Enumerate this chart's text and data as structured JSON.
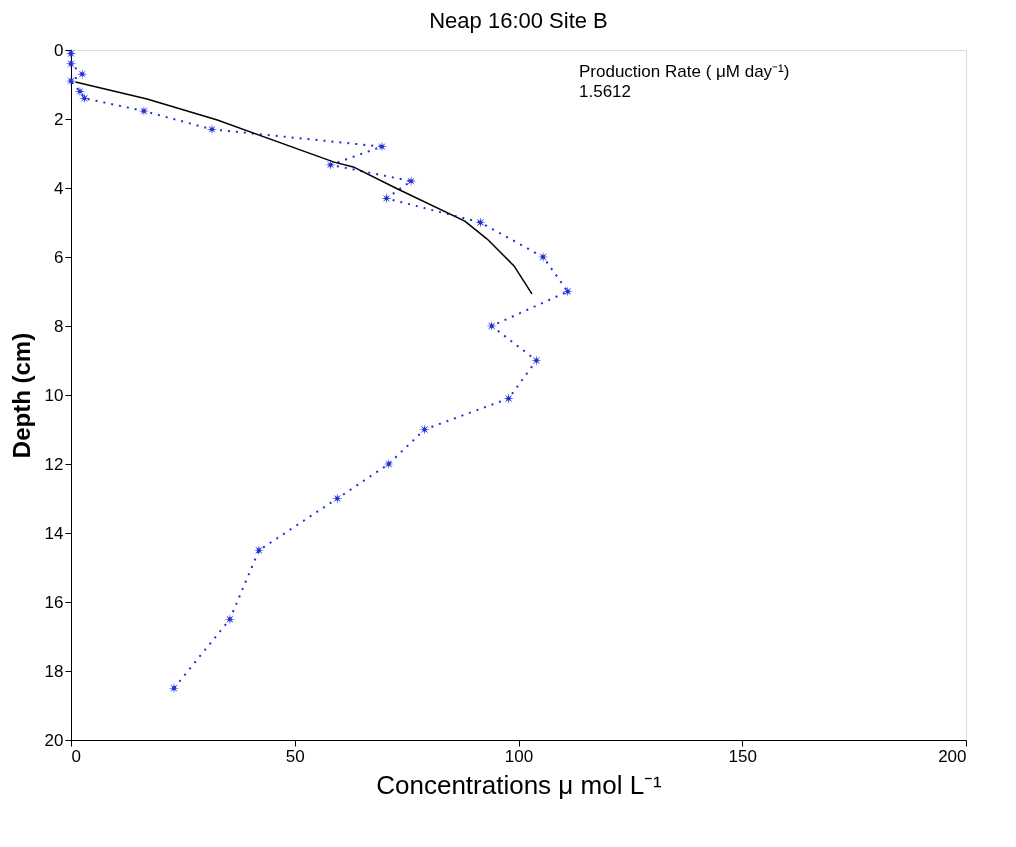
{
  "chart_data": {
    "type": "line",
    "title": "Neap 16:00 Site B",
    "xlabel": "Concentrations μ mol L⁻¹",
    "ylabel": "Depth (cm)",
    "annotations": [
      "Production Rate ( μM day⁻¹)",
      "1.5612"
    ],
    "xlim": [
      0,
      200
    ],
    "ylim": [
      20,
      0
    ],
    "xticks": [
      0,
      50,
      100,
      150,
      200
    ],
    "yticks": [
      0,
      2,
      4,
      6,
      8,
      10,
      12,
      14,
      16,
      18,
      20
    ],
    "series": [
      {
        "color": "#1f2fd6",
        "marker": "star",
        "line_style": "dotted",
        "x": [
          0,
          0,
          2.5,
          0,
          2,
          3,
          16.3,
          31.5,
          69.5,
          58,
          76,
          70.5,
          91.5,
          105.5,
          111,
          94,
          104,
          97.8,
          79,
          71,
          59.5,
          42,
          35.5,
          23
        ],
        "values": [
          0.1,
          0.4,
          0.7,
          0.9,
          1.2,
          1.4,
          1.77,
          2.3,
          2.8,
          3.33,
          3.8,
          4.3,
          5.0,
          6.0,
          7.0,
          8.0,
          9.0,
          10.1,
          11.0,
          12.0,
          13.0,
          14.5,
          16.5,
          18.5
        ]
      },
      {
        "color": "#000000",
        "marker": "none",
        "line_style": "solid",
        "x": [
          1,
          17,
          32.7,
          58.8,
          63.3,
          73,
          88,
          93,
          99,
          103
        ],
        "values": [
          0.93,
          1.42,
          2.03,
          3.25,
          3.4,
          4.03,
          4.96,
          5.48,
          6.26,
          7.07
        ]
      }
    ]
  }
}
